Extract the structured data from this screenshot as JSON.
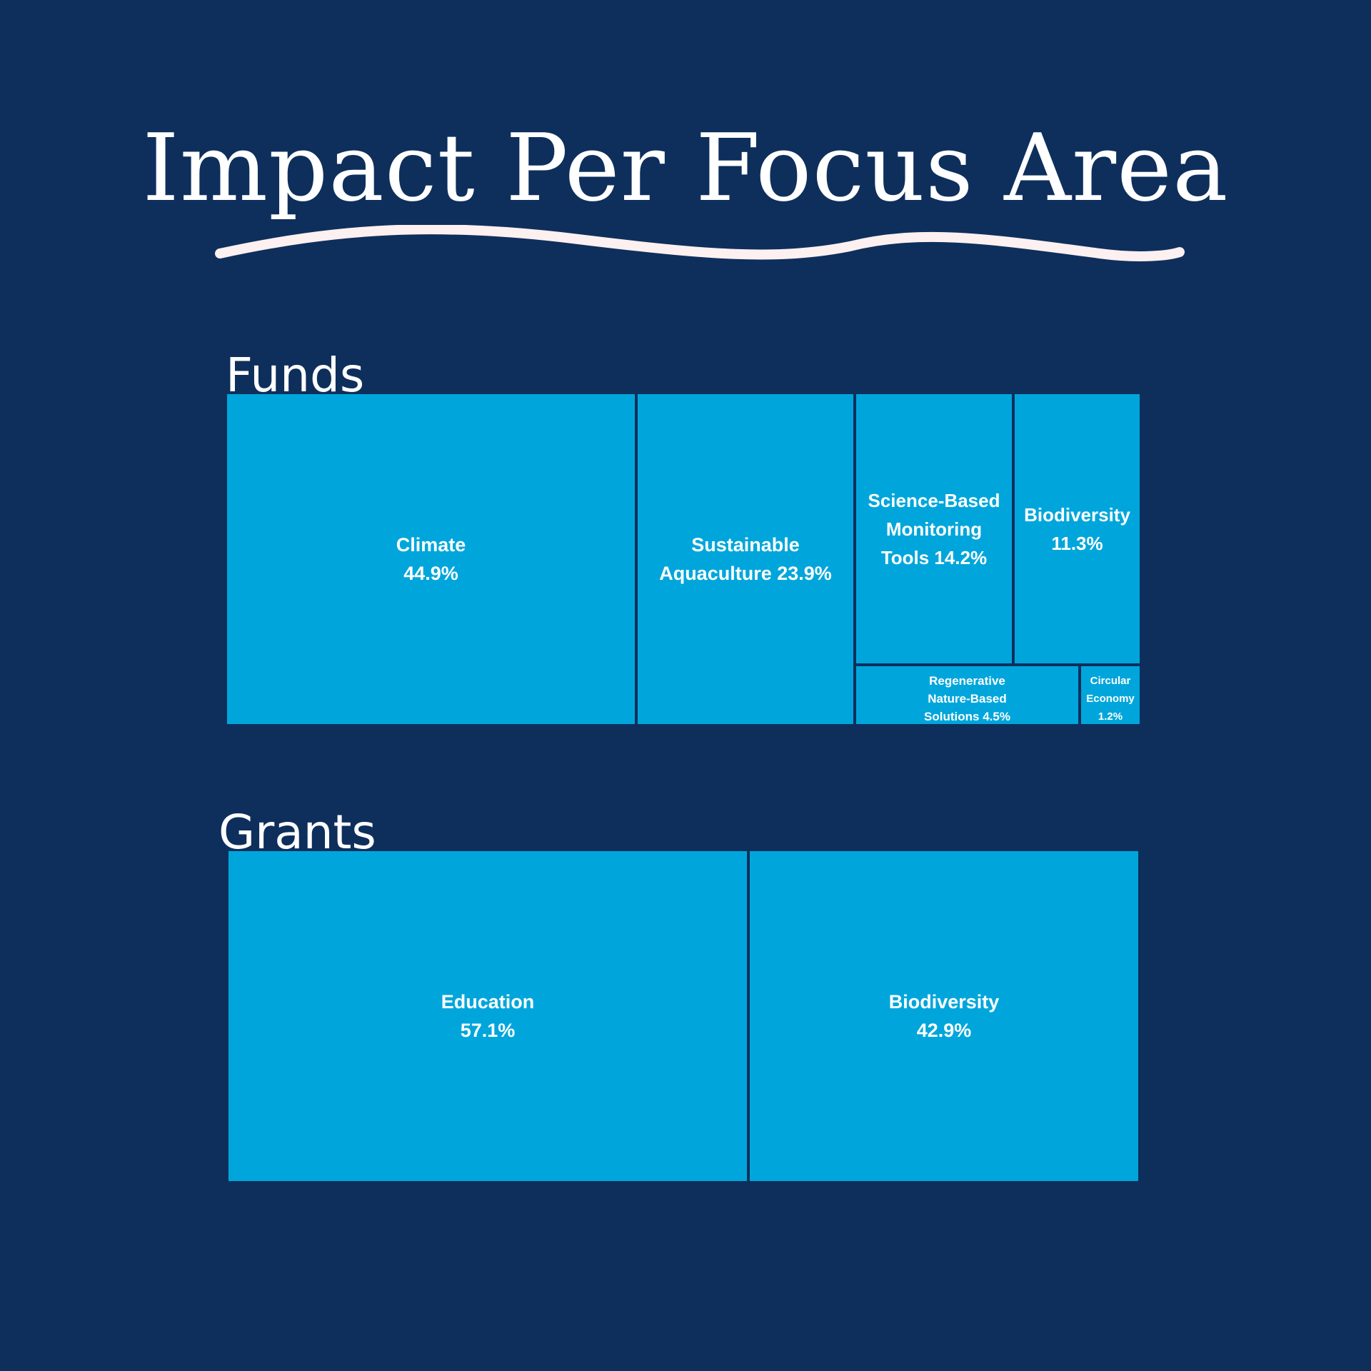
{
  "title": "Impact Per Focus Area",
  "colors": {
    "background": "#0e2f5c",
    "tile": "#00a6db",
    "text": "#ffffff",
    "wave": "#fdf0f0"
  },
  "sections": {
    "funds": {
      "label": "Funds"
    },
    "grants": {
      "label": "Grants"
    }
  },
  "chart_data": [
    {
      "type": "treemap",
      "title": "Funds",
      "series": [
        {
          "name": "Climate",
          "value": 44.9,
          "label": "Climate\n44.9%"
        },
        {
          "name": "Sustainable Aquaculture",
          "value": 23.9,
          "label": "Sustainable\nAquaculture 23.9%"
        },
        {
          "name": "Science-Based Monitoring Tools",
          "value": 14.2,
          "label": "Science-Based\nMonitoring\nTools 14.2%"
        },
        {
          "name": "Biodiversity",
          "value": 11.3,
          "label": "Biodiversity\n11.3%"
        },
        {
          "name": "Regenerative Nature-Based Solutions",
          "value": 4.5,
          "label": "Regenerative\nNature-Based\nSolutions 4.5%"
        },
        {
          "name": "Circular Economy",
          "value": 1.2,
          "label": "Circular\nEconomy\n1.2%"
        }
      ]
    },
    {
      "type": "treemap",
      "title": "Grants",
      "series": [
        {
          "name": "Education",
          "value": 57.1,
          "label": "Education\n57.1%"
        },
        {
          "name": "Biodiversity",
          "value": 42.9,
          "label": "Biodiversity\n42.9%"
        }
      ]
    }
  ]
}
